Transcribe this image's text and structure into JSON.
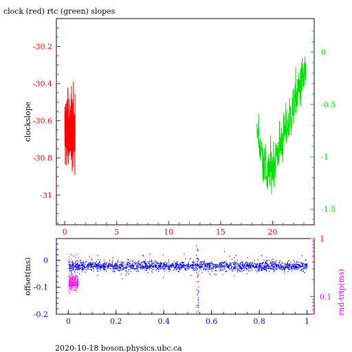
{
  "title": "clock (red) rtc (green) slopes",
  "footer": "2020-10-18 boson.physics.ubc.ca",
  "colors": {
    "red": "#ff0000",
    "green": "#00e000",
    "blue": "#0000ff",
    "magenta": "#ff00ff",
    "black": "#000000"
  },
  "chart_data": [
    {
      "type": "line",
      "panel": "top",
      "ylabel": "clockslope",
      "xlim": [
        -0.8,
        24
      ],
      "xticks": [
        "0",
        "5",
        "10",
        "15",
        "20"
      ],
      "xtick_values": [
        0,
        5,
        10,
        15,
        20
      ],
      "left_axis": {
        "ylim": [
          -31.16,
          -30.05
        ],
        "ticks": [
          "-30.2",
          "-30.4",
          "-30.6",
          "-30.8",
          "-31"
        ],
        "tick_values": [
          -30.2,
          -30.4,
          -30.6,
          -30.8,
          -31
        ]
      },
      "right_axis": {
        "ylim": [
          -1.65,
          0.32
        ],
        "ticks": [
          "0",
          "-0.5",
          "-1",
          "-1.5"
        ],
        "tick_values": [
          0,
          -0.5,
          -1,
          -1.5
        ]
      },
      "series": [
        {
          "axis": "left",
          "color": "red",
          "x_range": [
            0.0,
            1.0
          ],
          "y_range": [
            -31.12,
            -30.1
          ],
          "y_center": -30.65,
          "y_spread": 0.16,
          "n": 180
        },
        {
          "axis": "right",
          "color": "green",
          "x_range": [
            18.5,
            23.2
          ],
          "y_range": [
            -1.6,
            0.25
          ],
          "n": 220,
          "trend": [
            {
              "x": 18.5,
              "y": -0.75
            },
            {
              "x": 19.5,
              "y": -1.2
            },
            {
              "x": 20.5,
              "y": -0.95
            },
            {
              "x": 21.5,
              "y": -0.7
            },
            {
              "x": 22.5,
              "y": -0.35
            },
            {
              "x": 23.2,
              "y": -0.2
            }
          ]
        }
      ]
    },
    {
      "type": "scatter",
      "panel": "bottom",
      "ylabel": "offset(ms)",
      "y2label": "rnd-trip(ms)",
      "xlim": [
        -0.05,
        1.03
      ],
      "xticks": [
        "0",
        "0.2",
        "0.4",
        "0.6",
        "0.8",
        "1"
      ],
      "xtick_values": [
        0,
        0.2,
        0.4,
        0.6,
        0.8,
        1
      ],
      "left_axis": {
        "ylim": [
          -0.2,
          0.08
        ],
        "ticks": [
          "0",
          "-0.1",
          "-0.2"
        ],
        "tick_values": [
          0,
          -0.1,
          -0.2
        ]
      },
      "right_axis": {
        "scale": "log",
        "ylim": [
          0.05,
          1.0
        ],
        "ticks": [
          "1",
          "0.1"
        ],
        "tick_values": [
          1,
          0.1
        ]
      },
      "series": [
        {
          "axis": "left",
          "color": "blue",
          "x_range": [
            0.0,
            1.0
          ],
          "y_center": -0.02,
          "y_spread": 0.03,
          "n": 2600,
          "excursions": [
            {
              "x": 0.54,
              "y_min": -0.2,
              "y_max": 0.06
            }
          ]
        },
        {
          "axis": "right",
          "color": "magenta",
          "x_range": [
            0.0,
            0.04
          ],
          "y_range": [
            0.08,
            0.6
          ],
          "n": 260
        }
      ]
    }
  ]
}
